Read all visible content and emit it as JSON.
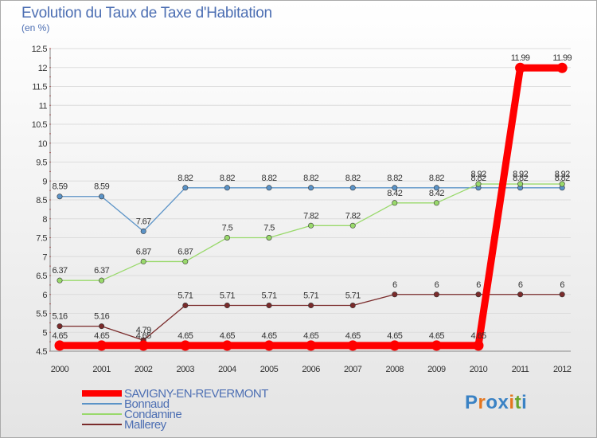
{
  "header": {
    "title": "Evolution du Taux de Taxe d'Habitation",
    "subtitle": "(en %)"
  },
  "logo": {
    "text": "Proxiti",
    "letter_colors": [
      "#3a82c4",
      "#e5761e",
      "#3a82c4",
      "#3a82c4",
      "#e5761e",
      "#6aa62e",
      "#3a82c4"
    ]
  },
  "chart_data": {
    "type": "line",
    "title": "Evolution du Taux de Taxe d'Habitation",
    "subtitle": "(en %)",
    "x": [
      "2000",
      "2001",
      "2002",
      "2003",
      "2004",
      "2005",
      "2006",
      "2007",
      "2008",
      "2009",
      "2010",
      "2011",
      "2012"
    ],
    "ylim": [
      4.5,
      12.5
    ],
    "yticks": [
      "4.5",
      "5",
      "5.5",
      "6",
      "6.5",
      "7",
      "7.5",
      "8",
      "8.5",
      "9",
      "9.5",
      "10",
      "10.5",
      "11",
      "11.5",
      "12",
      "12.5"
    ],
    "grid": "horizontal",
    "legend_position": "bottom-left",
    "series": [
      {
        "name": "Bonnaud",
        "color": "#5b93c7",
        "emphasis": false,
        "values": [
          8.59,
          8.59,
          7.67,
          8.82,
          8.82,
          8.82,
          8.82,
          8.82,
          8.82,
          8.82,
          8.82,
          8.82,
          8.82
        ],
        "labels": [
          "8.59",
          "8.59",
          "7.67",
          "8.82",
          "8.82",
          "8.82",
          "8.82",
          "8.82",
          "8.82",
          "8.82",
          "8.82",
          "8.82",
          "8.82"
        ]
      },
      {
        "name": "Condamine",
        "color": "#99d96b",
        "emphasis": false,
        "values": [
          6.37,
          6.37,
          6.87,
          6.87,
          7.5,
          7.5,
          7.82,
          7.82,
          8.42,
          8.42,
          8.92,
          8.92,
          8.92
        ],
        "labels": [
          "6.37",
          "6.37",
          "6.87",
          "6.87",
          "7.5",
          "7.5",
          "7.82",
          "7.82",
          "8.42",
          "8.42",
          "8.92",
          "8.92",
          "8.92"
        ]
      },
      {
        "name": "Mallerey",
        "color": "#7a2b2b",
        "emphasis": false,
        "values": [
          5.16,
          5.16,
          4.79,
          5.71,
          5.71,
          5.71,
          5.71,
          5.71,
          6,
          6,
          6,
          6,
          6
        ],
        "labels": [
          "5.16",
          "5.16",
          "4.79",
          "5.71",
          "5.71",
          "5.71",
          "5.71",
          "5.71",
          "6",
          "6",
          "6",
          "6",
          "6"
        ]
      },
      {
        "name": "SAVIGNY-EN-REVERMONT",
        "color": "#ff0000",
        "emphasis": true,
        "values": [
          4.65,
          4.65,
          4.65,
          4.65,
          4.65,
          4.65,
          4.65,
          4.65,
          4.65,
          4.65,
          4.65,
          11.99,
          11.99
        ],
        "labels": [
          "4.65",
          "4.65",
          "4.65",
          "4.65",
          "4.65",
          "4.65",
          "4.65",
          "4.65",
          "4.65",
          "4.65",
          "4.65",
          "11.99",
          "11.99"
        ]
      }
    ],
    "legend_order": [
      "SAVIGNY-EN-REVERMONT",
      "Bonnaud",
      "Condamine",
      "Mallerey"
    ]
  }
}
